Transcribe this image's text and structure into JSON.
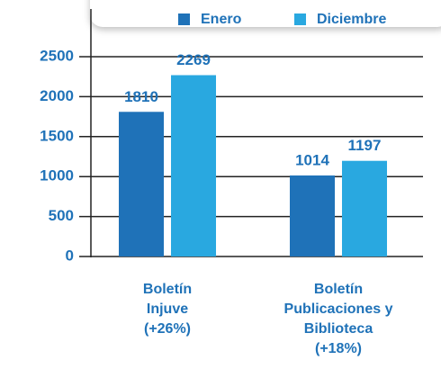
{
  "chart_data": {
    "type": "bar",
    "categories": [
      "Boletín\nInjuve\n(+26%)",
      "Boletín\nPublicaciones y\nBiblioteca\n(+18%)"
    ],
    "series": [
      {
        "name": "Enero",
        "color": "#1f72b8",
        "values": [
          1810,
          1014
        ]
      },
      {
        "name": "Diciembre",
        "color": "#29a8e0",
        "values": [
          2269,
          1197
        ]
      }
    ],
    "ylim": [
      0,
      2500
    ],
    "yticks": [
      0,
      500,
      1000,
      1500,
      2000,
      2500
    ],
    "grid": true,
    "legend": "top"
  }
}
